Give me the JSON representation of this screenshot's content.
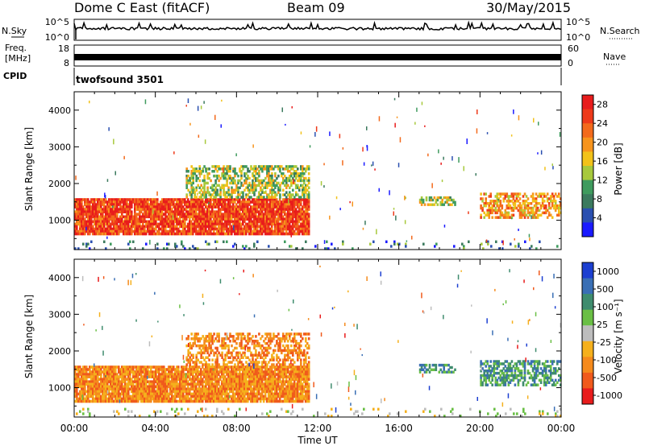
{
  "header": {
    "station": "Dome C East (fitACF)",
    "beam": "Beam 09",
    "date": "30/May/2015"
  },
  "top_panels": {
    "nsky_label": "N.Sky",
    "nsky_ticks": [
      "10^5",
      "10^0"
    ],
    "nsearch_label": "N.Search",
    "nsearch_ticks": [
      "10^5",
      "10^0"
    ],
    "freq_label_1": "Freq.",
    "freq_label_2": "[MHz]",
    "freq_ticks": [
      "18",
      "8"
    ],
    "nave_label": "Nave",
    "nave_ticks": [
      "60",
      "0"
    ],
    "cpid_label": "CPID",
    "cpid_value": "twofsound 3501"
  },
  "colors": {
    "power": [
      "#1a1aff",
      "#2a4fb0",
      "#3b7a5e",
      "#3f9b5e",
      "#a7c93c",
      "#f2c21a",
      "#f7941d",
      "#f36a1c",
      "#ee3a1a",
      "#e81c1c"
    ],
    "velocity": [
      "#1c3fd1",
      "#3a6fb5",
      "#3f8c6e",
      "#6abf45",
      "#bdbdbd",
      "#f5b01c",
      "#f58a1c",
      "#f05a1c",
      "#e81c1c"
    ]
  },
  "chart_data": [
    {
      "type": "heatmap",
      "name": "power-panel",
      "ylabel": "Slant Range [km]",
      "xlabel": "",
      "xlim": [
        0,
        24
      ],
      "ylim": [
        200,
        4500
      ],
      "xticks": [
        "00:00",
        "04:00",
        "08:00",
        "12:00",
        "16:00",
        "20:00",
        "00:00"
      ],
      "yticks": [
        1000,
        2000,
        3000,
        4000
      ],
      "colorbar_label": "Power [dB]",
      "colorbar_ticks": [
        "4",
        "8",
        "12",
        "16",
        "20",
        "24",
        "28"
      ],
      "colorbar_range": [
        0,
        30
      ],
      "regions": [
        {
          "t0": 0.0,
          "t1": 11.6,
          "r0": 600,
          "r1": 1600,
          "level": 0.85
        },
        {
          "t0": 5.5,
          "t1": 11.6,
          "r0": 1600,
          "r1": 2500,
          "level": 0.45
        },
        {
          "t0": 17.0,
          "t1": 18.8,
          "r0": 1400,
          "r1": 1650,
          "level": 0.45
        },
        {
          "t0": 20.0,
          "t1": 24.0,
          "r0": 1050,
          "r1": 1750,
          "level": 0.65
        },
        {
          "t0": 0.0,
          "t1": 24.0,
          "r0": 200,
          "r1": 450,
          "level": 0.25
        }
      ]
    },
    {
      "type": "heatmap",
      "name": "velocity-panel",
      "ylabel": "Slant Range [km]",
      "xlabel": "Time UT",
      "xlim": [
        0,
        24
      ],
      "ylim": [
        200,
        4500
      ],
      "xticks": [
        "00:00",
        "04:00",
        "08:00",
        "12:00",
        "16:00",
        "20:00",
        "00:00"
      ],
      "yticks": [
        1000,
        2000,
        3000,
        4000
      ],
      "colorbar_label": "Velocity [m s⁻¹]",
      "colorbar_ticks": [
        "1000",
        "500",
        "100",
        "25",
        "-25",
        "-100",
        "-500",
        "-1000"
      ],
      "colorbar_range": [
        -1000,
        1000
      ],
      "regions": [
        {
          "t0": 0.0,
          "t1": 11.6,
          "r0": 600,
          "r1": 1600,
          "level": -300
        },
        {
          "t0": 5.5,
          "t1": 11.6,
          "r0": 1600,
          "r1": 2500,
          "level": -150
        },
        {
          "t0": 17.0,
          "t1": 18.8,
          "r0": 1400,
          "r1": 1650,
          "level": 60
        },
        {
          "t0": 20.0,
          "t1": 24.0,
          "r0": 1050,
          "r1": 1750,
          "level": 80
        },
        {
          "t0": 0.0,
          "t1": 24.0,
          "r0": 200,
          "r1": 450,
          "level": 10
        }
      ]
    }
  ]
}
